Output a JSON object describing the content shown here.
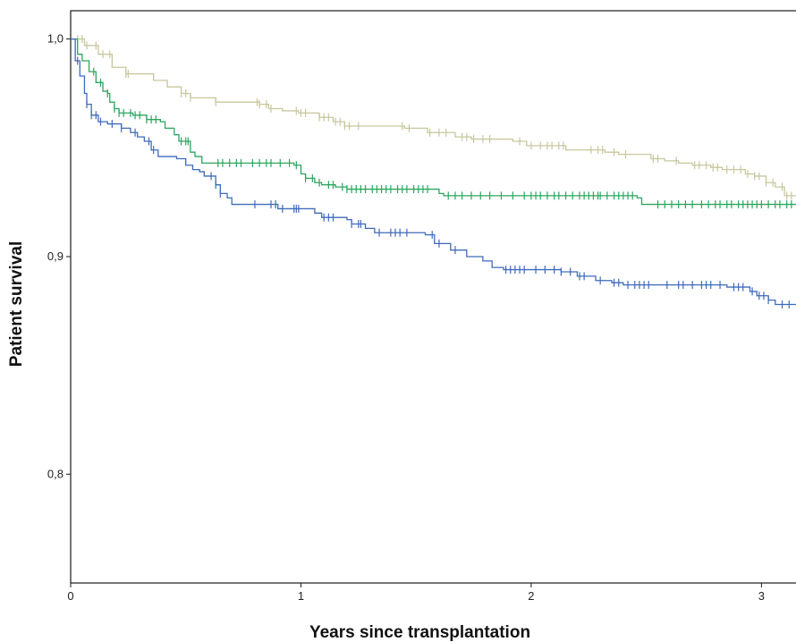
{
  "chart_data": {
    "type": "line",
    "title": "",
    "xlabel": "Years since transplantation",
    "ylabel": "Patient survival",
    "xlim": [
      0,
      3.15
    ],
    "ylim": [
      0.75,
      1.013
    ],
    "x_ticks": [
      {
        "value": 0,
        "label": "0"
      },
      {
        "value": 1,
        "label": "1"
      },
      {
        "value": 2,
        "label": "2"
      },
      {
        "value": 3,
        "label": "3"
      }
    ],
    "y_ticks": [
      {
        "value": 0.8,
        "label": "0,8"
      },
      {
        "value": 0.9,
        "label": "0,9"
      },
      {
        "value": 1.0,
        "label": "1,0"
      }
    ],
    "grid": false,
    "legend": "none",
    "step": true,
    "series": [
      {
        "color": "#c8c79d",
        "steps": [
          [
            0,
            1.0
          ],
          [
            0.06,
            0.997
          ],
          [
            0.12,
            0.993
          ],
          [
            0.18,
            0.987
          ],
          [
            0.24,
            0.984
          ],
          [
            0.36,
            0.981
          ],
          [
            0.42,
            0.978
          ],
          [
            0.48,
            0.975
          ],
          [
            0.52,
            0.973
          ],
          [
            0.63,
            0.971
          ],
          [
            0.82,
            0.97
          ],
          [
            0.86,
            0.968
          ],
          [
            0.92,
            0.967
          ],
          [
            0.99,
            0.966
          ],
          [
            1.08,
            0.964
          ],
          [
            1.14,
            0.962
          ],
          [
            1.19,
            0.96
          ],
          [
            1.45,
            0.959
          ],
          [
            1.55,
            0.957
          ],
          [
            1.67,
            0.955
          ],
          [
            1.74,
            0.954
          ],
          [
            1.92,
            0.953
          ],
          [
            1.98,
            0.951
          ],
          [
            2.15,
            0.949
          ],
          [
            2.32,
            0.948
          ],
          [
            2.38,
            0.947
          ],
          [
            2.52,
            0.945
          ],
          [
            2.58,
            0.944
          ],
          [
            2.64,
            0.943
          ],
          [
            2.7,
            0.942
          ],
          [
            2.78,
            0.941
          ],
          [
            2.83,
            0.94
          ],
          [
            2.93,
            0.938
          ],
          [
            2.97,
            0.937
          ],
          [
            3.02,
            0.934
          ],
          [
            3.06,
            0.932
          ],
          [
            3.1,
            0.928
          ],
          [
            3.15,
            0.928
          ]
        ],
        "censors": [
          0.03,
          0.05,
          0.07,
          0.11,
          0.14,
          0.17,
          0.24,
          0.25,
          0.48,
          0.5,
          0.52,
          0.63,
          0.81,
          0.82,
          0.85,
          0.87,
          0.98,
          1.0,
          1.02,
          1.08,
          1.1,
          1.12,
          1.15,
          1.17,
          1.19,
          1.21,
          1.25,
          1.44,
          1.47,
          1.56,
          1.6,
          1.63,
          1.7,
          1.72,
          1.75,
          1.79,
          1.82,
          1.95,
          2.0,
          2.04,
          2.07,
          2.09,
          2.12,
          2.14,
          2.26,
          2.29,
          2.31,
          2.36,
          2.41,
          2.53,
          2.55,
          2.63,
          2.71,
          2.73,
          2.76,
          2.79,
          2.81,
          2.85,
          2.88,
          2.91,
          2.94,
          2.97,
          2.99,
          3.02,
          3.05,
          3.09,
          3.11,
          3.13
        ]
      },
      {
        "color": "#2ca65e",
        "steps": [
          [
            0,
            1.0
          ],
          [
            0.03,
            0.993
          ],
          [
            0.05,
            0.99
          ],
          [
            0.08,
            0.985
          ],
          [
            0.11,
            0.98
          ],
          [
            0.14,
            0.976
          ],
          [
            0.16,
            0.975
          ],
          [
            0.17,
            0.971
          ],
          [
            0.19,
            0.968
          ],
          [
            0.21,
            0.966
          ],
          [
            0.27,
            0.965
          ],
          [
            0.33,
            0.963
          ],
          [
            0.39,
            0.962
          ],
          [
            0.41,
            0.959
          ],
          [
            0.45,
            0.956
          ],
          [
            0.47,
            0.953
          ],
          [
            0.52,
            0.948
          ],
          [
            0.54,
            0.946
          ],
          [
            0.57,
            0.943
          ],
          [
            0.97,
            0.942
          ],
          [
            1.0,
            0.938
          ],
          [
            1.02,
            0.936
          ],
          [
            1.06,
            0.934
          ],
          [
            1.09,
            0.933
          ],
          [
            1.15,
            0.932
          ],
          [
            1.2,
            0.931
          ],
          [
            1.6,
            0.929
          ],
          [
            1.62,
            0.928
          ],
          [
            2.46,
            0.927
          ],
          [
            2.48,
            0.924
          ],
          [
            3.15,
            0.924
          ]
        ],
        "censors": [
          0.1,
          0.13,
          0.16,
          0.19,
          0.21,
          0.23,
          0.26,
          0.28,
          0.3,
          0.33,
          0.35,
          0.37,
          0.48,
          0.5,
          0.51,
          0.64,
          0.66,
          0.69,
          0.72,
          0.74,
          0.79,
          0.82,
          0.85,
          0.87,
          0.91,
          0.95,
          0.98,
          1.02,
          1.05,
          1.08,
          1.12,
          1.14,
          1.18,
          1.2,
          1.22,
          1.24,
          1.26,
          1.28,
          1.31,
          1.33,
          1.35,
          1.37,
          1.39,
          1.42,
          1.44,
          1.46,
          1.49,
          1.51,
          1.53,
          1.55,
          1.64,
          1.67,
          1.7,
          1.74,
          1.78,
          1.82,
          1.87,
          1.92,
          1.97,
          2.0,
          2.02,
          2.04,
          2.07,
          2.1,
          2.12,
          2.15,
          2.18,
          2.21,
          2.23,
          2.25,
          2.27,
          2.29,
          2.3,
          2.33,
          2.36,
          2.38,
          2.4,
          2.42,
          2.44,
          2.55,
          2.58,
          2.61,
          2.64,
          2.67,
          2.7,
          2.74,
          2.77,
          2.8,
          2.82,
          2.85,
          2.87,
          2.9,
          2.92,
          2.94,
          2.96,
          2.98,
          3.0,
          3.03,
          3.06,
          3.08,
          3.11,
          3.13
        ]
      },
      {
        "color": "#3e6bbb",
        "steps": [
          [
            0,
            1.0
          ],
          [
            0.02,
            0.99
          ],
          [
            0.04,
            0.983
          ],
          [
            0.06,
            0.975
          ],
          [
            0.07,
            0.97
          ],
          [
            0.09,
            0.965
          ],
          [
            0.12,
            0.962
          ],
          [
            0.16,
            0.961
          ],
          [
            0.22,
            0.959
          ],
          [
            0.26,
            0.957
          ],
          [
            0.29,
            0.955
          ],
          [
            0.32,
            0.953
          ],
          [
            0.35,
            0.949
          ],
          [
            0.38,
            0.946
          ],
          [
            0.46,
            0.945
          ],
          [
            0.5,
            0.942
          ],
          [
            0.53,
            0.94
          ],
          [
            0.56,
            0.939
          ],
          [
            0.58,
            0.937
          ],
          [
            0.63,
            0.933
          ],
          [
            0.65,
            0.929
          ],
          [
            0.68,
            0.927
          ],
          [
            0.7,
            0.924
          ],
          [
            0.9,
            0.922
          ],
          [
            1.06,
            0.92
          ],
          [
            1.09,
            0.918
          ],
          [
            1.2,
            0.917
          ],
          [
            1.22,
            0.915
          ],
          [
            1.28,
            0.913
          ],
          [
            1.32,
            0.911
          ],
          [
            1.54,
            0.91
          ],
          [
            1.58,
            0.906
          ],
          [
            1.65,
            0.903
          ],
          [
            1.72,
            0.9
          ],
          [
            1.79,
            0.898
          ],
          [
            1.83,
            0.895
          ],
          [
            1.88,
            0.894
          ],
          [
            2.13,
            0.893
          ],
          [
            2.2,
            0.891
          ],
          [
            2.28,
            0.889
          ],
          [
            2.35,
            0.888
          ],
          [
            2.4,
            0.887
          ],
          [
            2.85,
            0.886
          ],
          [
            2.95,
            0.884
          ],
          [
            2.98,
            0.882
          ],
          [
            3.03,
            0.88
          ],
          [
            3.06,
            0.878
          ],
          [
            3.15,
            0.878
          ]
        ],
        "censors": [
          0.03,
          0.07,
          0.09,
          0.11,
          0.13,
          0.18,
          0.22,
          0.28,
          0.34,
          0.36,
          0.61,
          0.63,
          0.65,
          0.8,
          0.87,
          0.89,
          0.92,
          0.97,
          0.98,
          0.99,
          1.1,
          1.12,
          1.14,
          1.22,
          1.25,
          1.26,
          1.34,
          1.39,
          1.41,
          1.43,
          1.46,
          1.57,
          1.6,
          1.67,
          1.89,
          1.91,
          1.93,
          1.95,
          1.97,
          2.02,
          2.06,
          2.1,
          2.13,
          2.17,
          2.21,
          2.23,
          2.3,
          2.36,
          2.38,
          2.42,
          2.45,
          2.47,
          2.49,
          2.51,
          2.59,
          2.64,
          2.66,
          2.7,
          2.74,
          2.76,
          2.78,
          2.82,
          2.88,
          2.9,
          2.92,
          2.96,
          2.99,
          3.01,
          3.03,
          3.09,
          3.12
        ]
      }
    ]
  }
}
